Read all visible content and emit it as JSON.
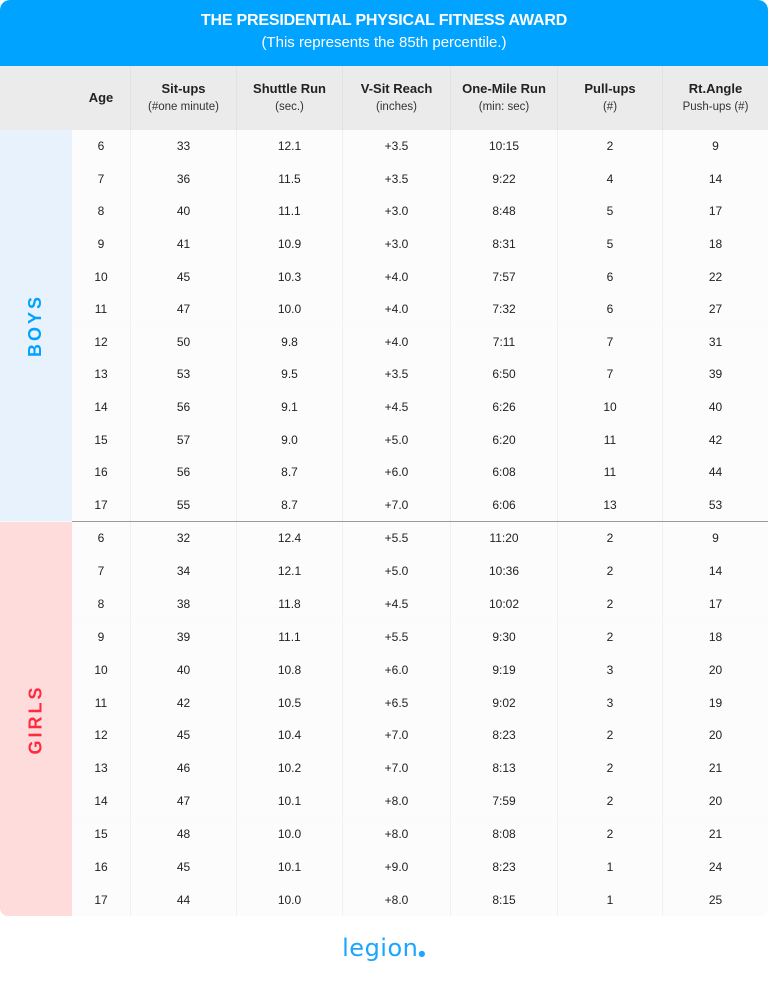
{
  "header": {
    "title": "THE PRESIDENTIAL PHYSICAL FITNESS AWARD",
    "subtitle": "(This represents the 85th percentile.)"
  },
  "columns": [
    {
      "label": "Age",
      "sub": ""
    },
    {
      "label": "Sit-ups",
      "sub": "(#one minute)"
    },
    {
      "label": "Shuttle Run",
      "sub": "(sec.)"
    },
    {
      "label": "V-Sit Reach",
      "sub": "(inches)"
    },
    {
      "label": "One-Mile Run",
      "sub": "(min: sec)"
    },
    {
      "label": "Pull-ups",
      "sub": "(#)"
    },
    {
      "label": "Rt.Angle",
      "sub": "Push-ups (#)"
    }
  ],
  "groups": [
    {
      "label": "BOYS",
      "color": "#00a3ff",
      "rows": [
        [
          "6",
          "33",
          "12.1",
          "+3.5",
          "10:15",
          "2",
          "9"
        ],
        [
          "7",
          "36",
          "11.5",
          "+3.5",
          "9:22",
          "4",
          "14"
        ],
        [
          "8",
          "40",
          "11.1",
          "+3.0",
          "8:48",
          "5",
          "17"
        ],
        [
          "9",
          "41",
          "10.9",
          "+3.0",
          "8:31",
          "5",
          "18"
        ],
        [
          "10",
          "45",
          "10.3",
          "+4.0",
          "7:57",
          "6",
          "22"
        ],
        [
          "11",
          "47",
          "10.0",
          "+4.0",
          "7:32",
          "6",
          "27"
        ],
        [
          "12",
          "50",
          "9.8",
          "+4.0",
          "7:11",
          "7",
          "31"
        ],
        [
          "13",
          "53",
          "9.5",
          "+3.5",
          "6:50",
          "7",
          "39"
        ],
        [
          "14",
          "56",
          "9.1",
          "+4.5",
          "6:26",
          "10",
          "40"
        ],
        [
          "15",
          "57",
          "9.0",
          "+5.0",
          "6:20",
          "11",
          "42"
        ],
        [
          "16",
          "56",
          "8.7",
          "+6.0",
          "6:08",
          "11",
          "44"
        ],
        [
          "17",
          "55",
          "8.7",
          "+7.0",
          "6:06",
          "13",
          "53"
        ]
      ]
    },
    {
      "label": "GIRLS",
      "color": "#ff2a3d",
      "rows": [
        [
          "6",
          "32",
          "12.4",
          "+5.5",
          "11:20",
          "2",
          "9"
        ],
        [
          "7",
          "34",
          "12.1",
          "+5.0",
          "10:36",
          "2",
          "14"
        ],
        [
          "8",
          "38",
          "11.8",
          "+4.5",
          "10:02",
          "2",
          "17"
        ],
        [
          "9",
          "39",
          "11.1",
          "+5.5",
          "9:30",
          "2",
          "18"
        ],
        [
          "10",
          "40",
          "10.8",
          "+6.0",
          "9:19",
          "3",
          "20"
        ],
        [
          "11",
          "42",
          "10.5",
          "+6.5",
          "9:02",
          "3",
          "19"
        ],
        [
          "12",
          "45",
          "10.4",
          "+7.0",
          "8:23",
          "2",
          "20"
        ],
        [
          "13",
          "46",
          "10.2",
          "+7.0",
          "8:13",
          "2",
          "21"
        ],
        [
          "14",
          "47",
          "10.1",
          "+8.0",
          "7:59",
          "2",
          "20"
        ],
        [
          "15",
          "48",
          "10.0",
          "+8.0",
          "8:08",
          "2",
          "21"
        ],
        [
          "16",
          "45",
          "10.1",
          "+9.0",
          "8:23",
          "1",
          "24"
        ],
        [
          "17",
          "44",
          "10.0",
          "+8.0",
          "8:15",
          "1",
          "25"
        ]
      ]
    }
  ],
  "footer": {
    "logo": "legion"
  }
}
